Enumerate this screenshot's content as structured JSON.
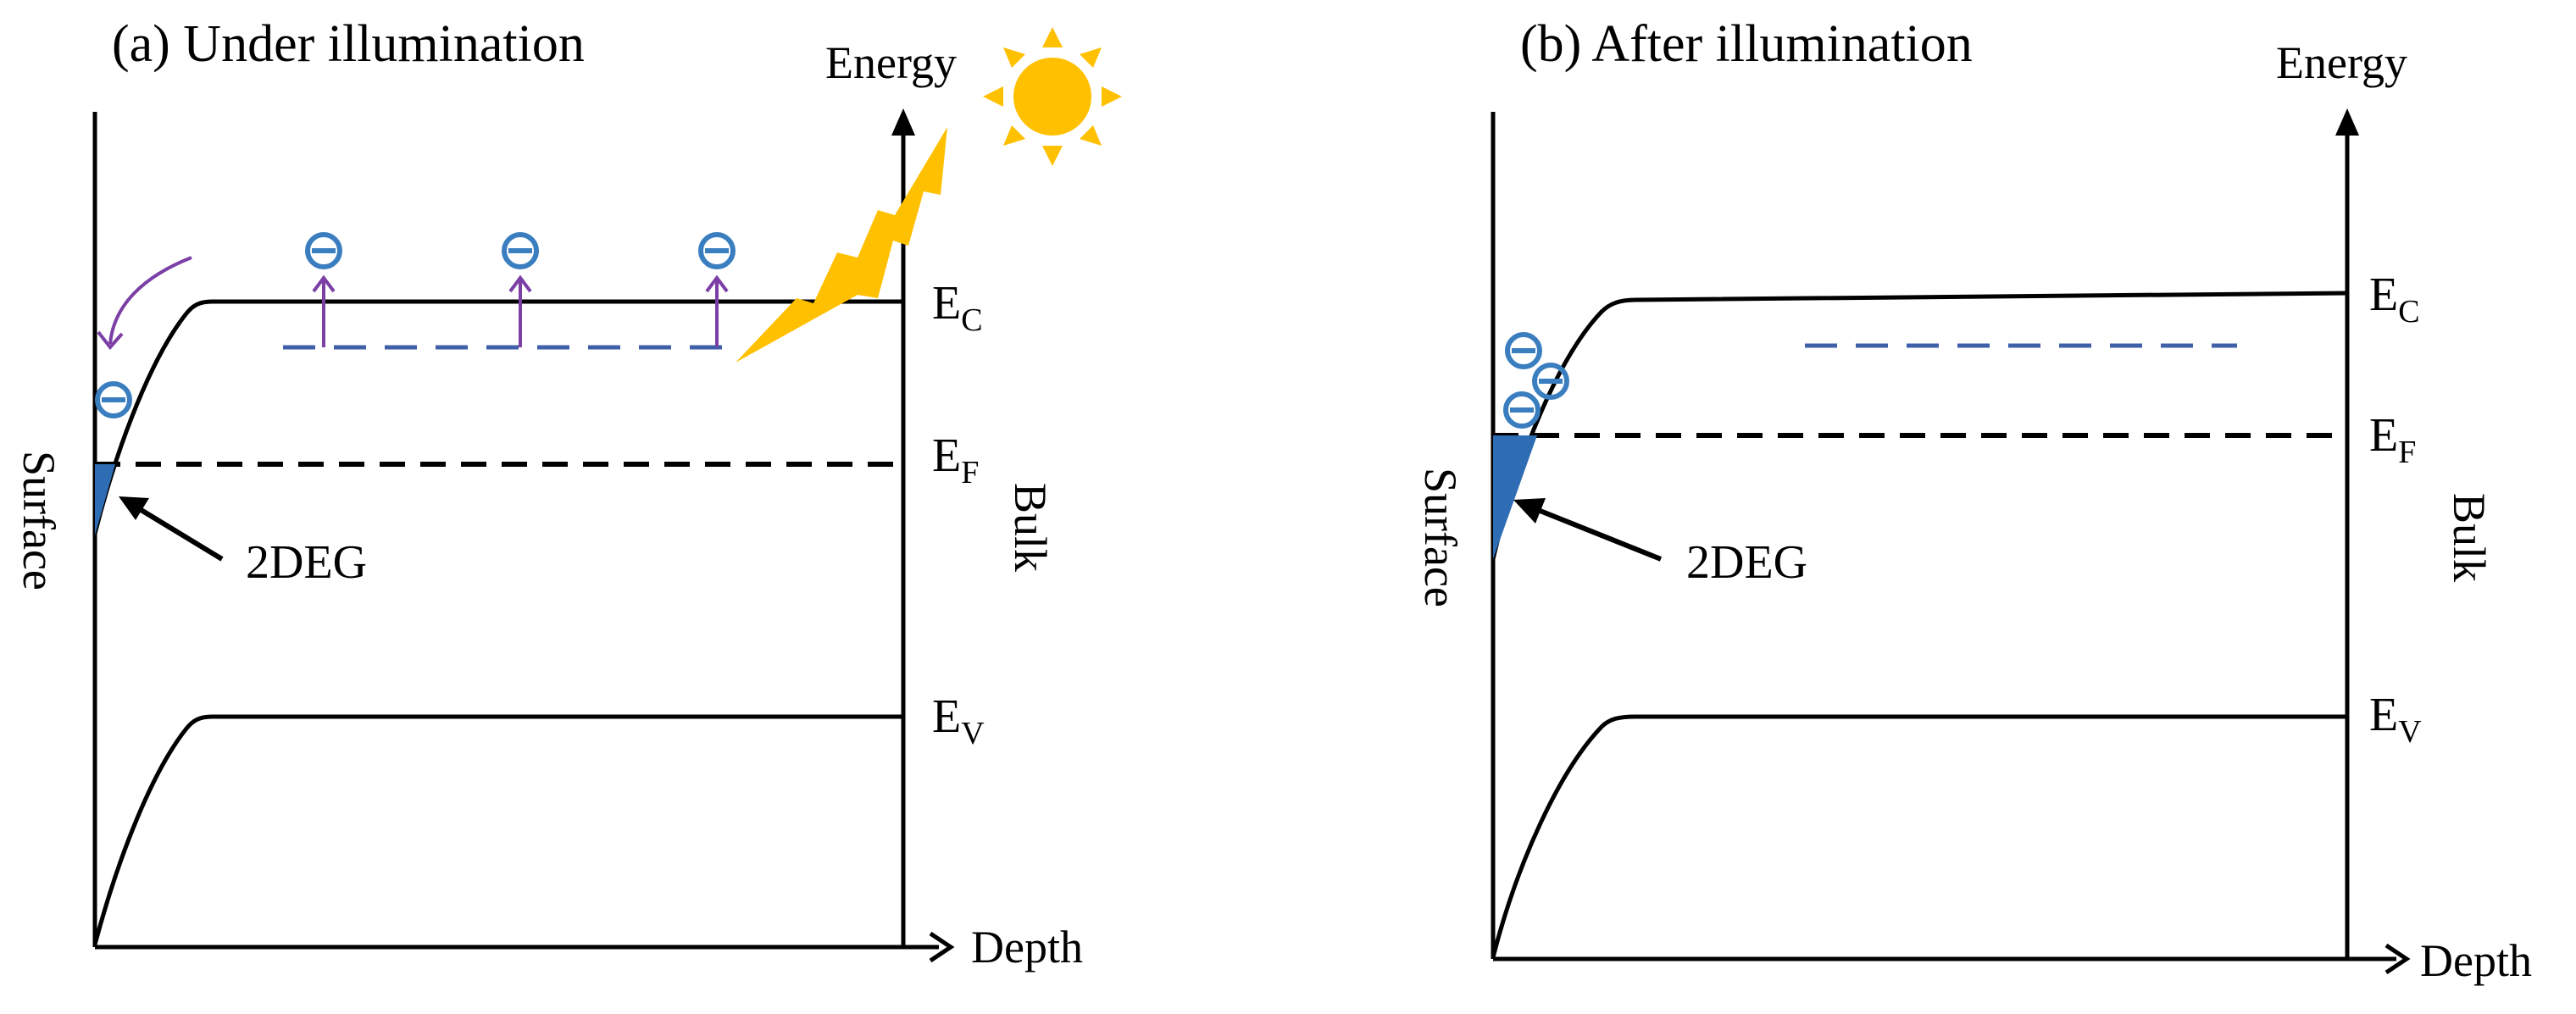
{
  "panel_a": {
    "title": "(a) Under illumination",
    "y_axis_label": "Energy",
    "x_axis_label": "Depth",
    "ec_label": "E",
    "ec_sub": "C",
    "ef_label": "E",
    "ef_sub": "F",
    "ev_label": "E",
    "ev_sub": "V",
    "surface_label": "Surface",
    "bulk_label": "Bulk",
    "deg_label": "2DEG"
  },
  "panel_b": {
    "title": "(b) After illumination",
    "y_axis_label": "Energy",
    "x_axis_label": "Depth",
    "ec_label": "E",
    "ec_sub": "C",
    "ef_label": "E",
    "ef_sub": "F",
    "ev_label": "E",
    "ev_sub": "V",
    "surface_label": "Surface",
    "bulk_label": "Bulk",
    "deg_label": "2DEG"
  },
  "colors": {
    "band": "#000000",
    "electron": "#3a7ebf",
    "trap_level": "#3f5fa8",
    "excitation_arrow": "#7b3fa6",
    "sun": "#ffc000",
    "twodeg_fill": "#2e6db4"
  },
  "icons": {
    "sun": "sun-icon",
    "lightning": "lightning-bolt-icon",
    "electron": "electron-icon"
  }
}
